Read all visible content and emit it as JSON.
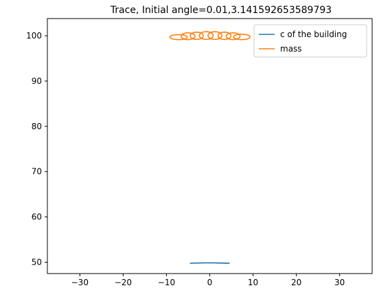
{
  "chart_data": {
    "type": "line",
    "title": "Trace, Initial angle=0.01,3.141592653589793",
    "xlabel": "",
    "ylabel": "",
    "xlim": [
      -37.5,
      37.5
    ],
    "ylim": [
      47.5,
      103.8
    ],
    "xticks": [
      -30,
      -20,
      -10,
      0,
      10,
      20,
      30
    ],
    "yticks": [
      50,
      60,
      70,
      80,
      90,
      100
    ],
    "grid": false,
    "legend_position": "top-right",
    "series": [
      {
        "name": "c of the building",
        "color": "#1f77b4",
        "x": [
          -4.6,
          -4.0,
          -3.0,
          -2.0,
          -1.0,
          0.0,
          1.0,
          2.0,
          3.0,
          4.0,
          4.6,
          4.0,
          3.0,
          2.0,
          1.0,
          0.0,
          -1.0,
          -2.0,
          -3.0,
          -4.0,
          -4.6
        ],
        "y": [
          49.78,
          49.8,
          49.82,
          49.84,
          49.86,
          49.87,
          49.86,
          49.85,
          49.83,
          49.8,
          49.78,
          49.79,
          49.81,
          49.83,
          49.85,
          49.86,
          49.85,
          49.84,
          49.82,
          49.8,
          49.78
        ]
      },
      {
        "name": "mass",
        "color": "#ff7f0e",
        "loops": [
          {
            "cx": -7.2,
            "cy": 99.7,
            "rx": 2.0,
            "ry": 0.55
          },
          {
            "cx": -5.0,
            "cy": 99.9,
            "rx": 1.6,
            "ry": 0.75
          },
          {
            "cx": -3.0,
            "cy": 100.0,
            "rx": 1.5,
            "ry": 0.8
          },
          {
            "cx": -0.8,
            "cy": 100.05,
            "rx": 1.6,
            "ry": 0.85
          },
          {
            "cx": 1.2,
            "cy": 100.05,
            "rx": 1.6,
            "ry": 0.85
          },
          {
            "cx": 3.4,
            "cy": 100.0,
            "rx": 1.5,
            "ry": 0.8
          },
          {
            "cx": 5.4,
            "cy": 99.9,
            "rx": 1.6,
            "ry": 0.75
          },
          {
            "cx": 7.4,
            "cy": 99.75,
            "rx": 1.9,
            "ry": 0.6
          }
        ]
      }
    ]
  }
}
